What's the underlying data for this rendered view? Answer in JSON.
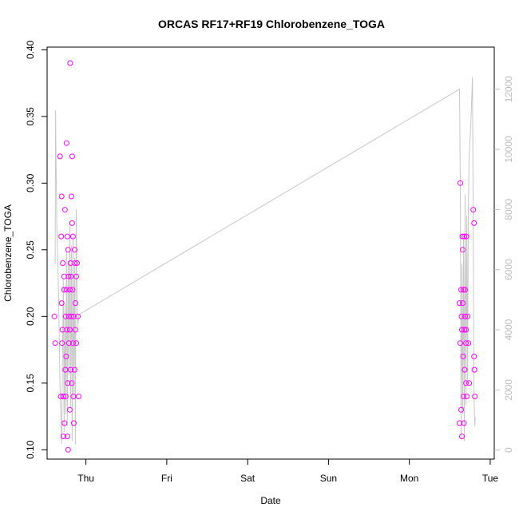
{
  "chart_data": {
    "type": "scatter",
    "title": "ORCAS RF17+RF19 Chlorobenzene_TOGA",
    "xlabel": "Date",
    "ylabel": "Chlorobenzene_TOGA",
    "x_ticks": [
      "Thu",
      "Fri",
      "Sat",
      "Sun",
      "Mon",
      "Tue"
    ],
    "x_tick_values": [
      1,
      2,
      3,
      4,
      5,
      6
    ],
    "xlim": [
      0.52,
      6.05
    ],
    "ylim": [
      0.093,
      0.402
    ],
    "y_ticks": [
      "0.10",
      "0.15",
      "0.20",
      "0.25",
      "0.30",
      "0.35",
      "0.40"
    ],
    "y_tick_values": [
      0.1,
      0.15,
      0.2,
      0.25,
      0.3,
      0.35,
      0.4
    ],
    "y2lim": [
      -300,
      13400
    ],
    "y2_ticks": [
      "0",
      "2000",
      "4000",
      "6000",
      "8000",
      "10000",
      "12000"
    ],
    "y2_tick_values": [
      0,
      2000,
      4000,
      6000,
      8000,
      10000,
      12000
    ],
    "colors": {
      "points": "#ff00ff",
      "altitude_line": "#c8c8c8",
      "axis": "#000000",
      "right_axis": "#bdbdbd"
    },
    "series": [
      {
        "axis": "left",
        "style": "points",
        "x": [
          0.61,
          0.62,
          0.68,
          0.69,
          0.695,
          0.7,
          0.7,
          0.705,
          0.71,
          0.715,
          0.72,
          0.72,
          0.73,
          0.73,
          0.735,
          0.74,
          0.745,
          0.75,
          0.75,
          0.755,
          0.76,
          0.76,
          0.765,
          0.77,
          0.77,
          0.775,
          0.78,
          0.78,
          0.785,
          0.79,
          0.79,
          0.8,
          0.8,
          0.8,
          0.805,
          0.81,
          0.81,
          0.815,
          0.82,
          0.82,
          0.825,
          0.83,
          0.83,
          0.835,
          0.84,
          0.84,
          0.845,
          0.85,
          0.85,
          0.86,
          0.86,
          0.865,
          0.87,
          0.87,
          0.88,
          0.88,
          0.89,
          0.9,
          0.91,
          5.62,
          5.62,
          5.63,
          5.63,
          5.64,
          5.64,
          5.645,
          5.65,
          5.65,
          5.655,
          5.66,
          5.66,
          5.665,
          5.67,
          5.67,
          5.675,
          5.68,
          5.68,
          5.685,
          5.69,
          5.69,
          5.7,
          5.7,
          5.7,
          5.705,
          5.71,
          5.72,
          5.73,
          5.74,
          5.79,
          5.8,
          5.8,
          5.805,
          5.81
        ],
        "y": [
          0.2,
          0.18,
          0.32,
          0.14,
          0.26,
          0.29,
          0.21,
          0.18,
          0.19,
          0.24,
          0.14,
          0.11,
          0.23,
          0.22,
          0.12,
          0.28,
          0.16,
          0.2,
          0.14,
          0.17,
          0.33,
          0.22,
          0.19,
          0.26,
          0.11,
          0.15,
          0.25,
          0.1,
          0.23,
          0.2,
          0.18,
          0.22,
          0.19,
          0.13,
          0.39,
          0.24,
          0.16,
          0.23,
          0.29,
          0.2,
          0.15,
          0.32,
          0.27,
          0.22,
          0.26,
          0.18,
          0.14,
          0.2,
          0.12,
          0.25,
          0.16,
          0.24,
          0.21,
          0.19,
          0.18,
          0.23,
          0.24,
          0.2,
          0.14,
          0.21,
          0.12,
          0.3,
          0.18,
          0.22,
          0.13,
          0.2,
          0.19,
          0.11,
          0.26,
          0.21,
          0.25,
          0.17,
          0.22,
          0.14,
          0.12,
          0.26,
          0.19,
          0.16,
          0.22,
          0.2,
          0.18,
          0.15,
          0.19,
          0.26,
          0.14,
          0.2,
          0.18,
          0.15,
          0.28,
          0.27,
          0.17,
          0.16,
          0.14
        ]
      },
      {
        "axis": "right",
        "style": "line",
        "x": [
          0.62,
          0.625,
          0.63,
          0.64,
          0.66,
          0.68,
          0.7,
          0.72,
          0.73,
          0.74,
          0.75,
          0.76,
          0.77,
          0.78,
          0.79,
          0.8,
          0.81,
          0.82,
          0.83,
          0.84,
          0.85,
          0.86,
          0.87,
          0.88,
          0.89,
          0.9,
          0.91,
          5.62,
          5.63,
          5.64,
          5.65,
          5.66,
          5.67,
          5.68,
          5.69,
          5.7,
          5.71,
          5.72,
          5.73,
          5.74,
          5.76,
          5.78,
          5.79,
          5.8,
          5.81,
          5.815
        ],
        "y": [
          6200,
          11300,
          9800,
          7400,
          5400,
          2100,
          200,
          5700,
          600,
          4800,
          1200,
          6600,
          800,
          6300,
          2500,
          7600,
          1400,
          6800,
          300,
          7200,
          1700,
          6400,
          200,
          8000,
          5000,
          4100,
          4500,
          12000,
          8700,
          400,
          6200,
          1200,
          7000,
          300,
          8500,
          1500,
          7800,
          2200,
          8200,
          9800,
          10800,
          12400,
          7600,
          1700,
          800,
          1100
        ]
      }
    ]
  }
}
